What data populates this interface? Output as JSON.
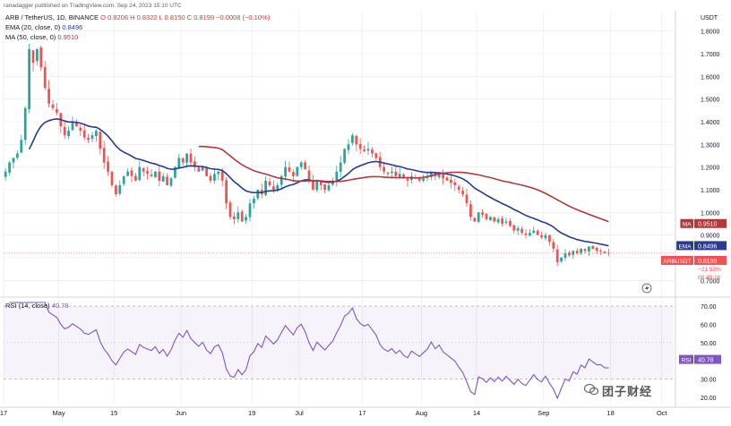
{
  "credit": "ranadagger published on TradingView.com, Sep 24, 2023 15:10 UTC",
  "header": {
    "symbol": "ARB / TetherUS, 1D, BINANCE",
    "ohlc": "O 0.8206  H 0.8322  L 0.8150  C 0.8199  −0.0008 (−0.10%)",
    "ema_label": "EMA (20, close, 0)",
    "ema_value": "0.8496",
    "ma_label": "MA (50, close, 0)",
    "ma_value": "0.9510"
  },
  "rsi_header": {
    "label": "RSI (14, close)",
    "value": "40.78"
  },
  "watermark": "团子财经",
  "colors": {
    "up": "#26a69a",
    "down": "#ef5350",
    "ema": "#2a3b8f",
    "ma": "#b2383b",
    "rsi": "#7e57c2",
    "grid": "#e6e8ee",
    "axis_text": "#131722"
  },
  "chart_data": [
    {
      "type": "candlestick",
      "title": "ARB / TetherUS, 1D, BINANCE",
      "y_unit": "USDT",
      "ylim": [
        0.65,
        1.85
      ],
      "y_ticks": [
        "1.8000",
        "1.7000",
        "1.6000",
        "1.5000",
        "1.4000",
        "1.3000",
        "1.2000",
        "1.1000",
        "1.0000",
        "0.9000",
        "0.8000",
        "0.7000"
      ],
      "x_ticks": [
        "17",
        "May",
        "15",
        "Jun",
        "19",
        "Jul",
        "17",
        "Aug",
        "14",
        "Sep",
        "18",
        "Oct"
      ],
      "x_tick_days": [
        0,
        14,
        28,
        45,
        63,
        75,
        91,
        106,
        120,
        137,
        154,
        167
      ],
      "start_date": "2023-04-17",
      "closes": [
        1.18,
        1.22,
        1.24,
        1.26,
        1.32,
        1.46,
        1.72,
        1.66,
        1.72,
        1.64,
        1.55,
        1.48,
        1.46,
        1.44,
        1.38,
        1.34,
        1.36,
        1.4,
        1.38,
        1.36,
        1.33,
        1.32,
        1.34,
        1.36,
        1.28,
        1.22,
        1.18,
        1.12,
        1.08,
        1.12,
        1.16,
        1.18,
        1.16,
        1.14,
        1.2,
        1.18,
        1.17,
        1.16,
        1.18,
        1.14,
        1.16,
        1.12,
        1.15,
        1.2,
        1.24,
        1.22,
        1.26,
        1.22,
        1.2,
        1.18,
        1.2,
        1.16,
        1.14,
        1.17,
        1.18,
        1.14,
        1.04,
        0.98,
        0.97,
        1.0,
        0.96,
        0.98,
        1.04,
        1.06,
        1.1,
        1.08,
        1.14,
        1.12,
        1.1,
        1.12,
        1.16,
        1.2,
        1.18,
        1.16,
        1.2,
        1.22,
        1.19,
        1.14,
        1.1,
        1.14,
        1.12,
        1.1,
        1.12,
        1.14,
        1.18,
        1.22,
        1.28,
        1.3,
        1.34,
        1.3,
        1.28,
        1.27,
        1.28,
        1.26,
        1.24,
        1.2,
        1.18,
        1.17,
        1.18,
        1.16,
        1.17,
        1.15,
        1.14,
        1.16,
        1.15,
        1.14,
        1.15,
        1.16,
        1.18,
        1.16,
        1.17,
        1.15,
        1.14,
        1.13,
        1.12,
        1.1,
        1.08,
        1.04,
        0.98,
        0.96,
        1.0,
        0.99,
        0.97,
        0.98,
        0.96,
        0.97,
        0.95,
        0.96,
        0.94,
        0.92,
        0.93,
        0.91,
        0.9,
        0.91,
        0.92,
        0.9,
        0.89,
        0.9,
        0.87,
        0.84,
        0.78,
        0.8,
        0.82,
        0.81,
        0.83,
        0.82,
        0.84,
        0.83,
        0.85,
        0.84,
        0.83,
        0.83,
        0.82,
        0.8199
      ],
      "legend": [
        {
          "tag": "USDT",
          "value": ""
        },
        {
          "tag": "MA",
          "value": "0.9510"
        },
        {
          "tag": "EMA",
          "value": "0.8496"
        },
        {
          "tag": "ARBUSDT",
          "value": "0.8199"
        },
        {
          "tag": "",
          "value": "−21.50%"
        },
        {
          "tag": "",
          "value": "08:49:16"
        }
      ]
    },
    {
      "type": "line",
      "title": "RSI (14, close)",
      "ylim": [
        18,
        72
      ],
      "y_ticks": [
        "70.00",
        "60.00",
        "50.00",
        "40.00",
        "30.00",
        "20.00"
      ],
      "band": [
        30,
        70
      ],
      "current": "40.78"
    }
  ]
}
